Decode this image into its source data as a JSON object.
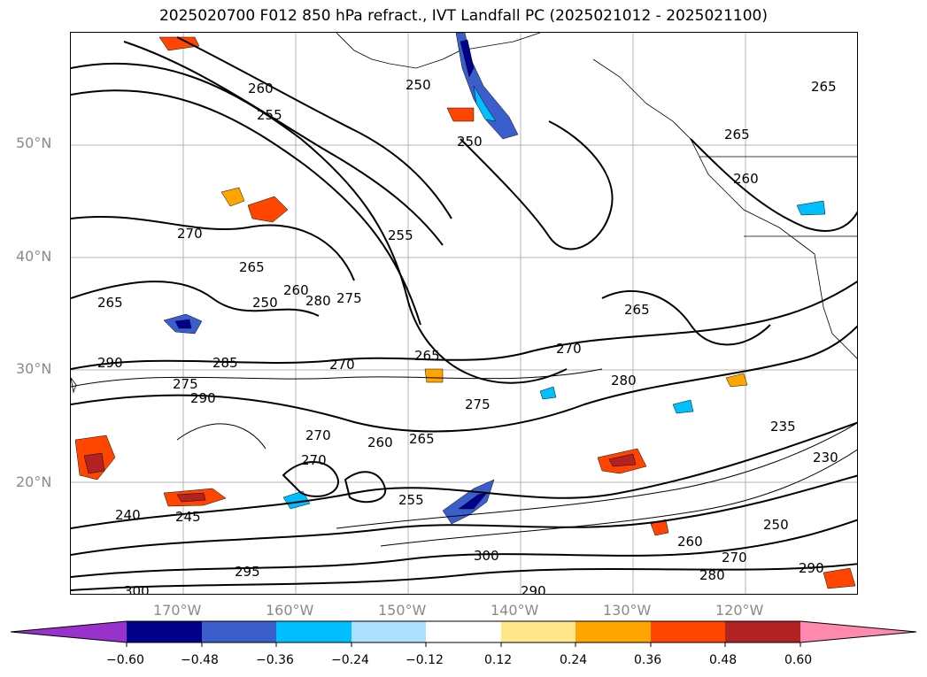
{
  "title": "2025020700 F012 850 hPa refract., IVT Landfall PC (2025021012 - 2025021100)",
  "map": {
    "lat_labels": [
      "50°N",
      "40°N",
      "30°N",
      "20°N"
    ],
    "lon_labels": [
      "170°W",
      "160°W",
      "150°W",
      "140°W",
      "130°W",
      "120°W"
    ],
    "contour_labels": [
      "250",
      "255",
      "250",
      "260",
      "265",
      "265",
      "260",
      "270",
      "265",
      "255",
      "250",
      "260",
      "265",
      "275",
      "280",
      "270",
      "265",
      "270",
      "290",
      "285",
      "275",
      "290",
      "270",
      "280",
      "275",
      "265",
      "260",
      "265",
      "270",
      "255",
      "240",
      "245",
      "235",
      "230",
      "250",
      "260",
      "270",
      "290",
      "280",
      "290",
      "300",
      "295",
      "300"
    ]
  },
  "colorbar": {
    "tick_labels": [
      "−0.60",
      "−0.48",
      "−0.36",
      "−0.24",
      "−0.12",
      "0.12",
      "0.24",
      "0.36",
      "0.48",
      "0.60"
    ],
    "colors": [
      "#9932CC",
      "#00008B",
      "#3A5FCD",
      "#00BFFF",
      "#ADDFFF",
      "#FFFFFF",
      "#FFE68A",
      "#FFA500",
      "#FF4500",
      "#B22222",
      "#FF8AAE"
    ]
  }
}
